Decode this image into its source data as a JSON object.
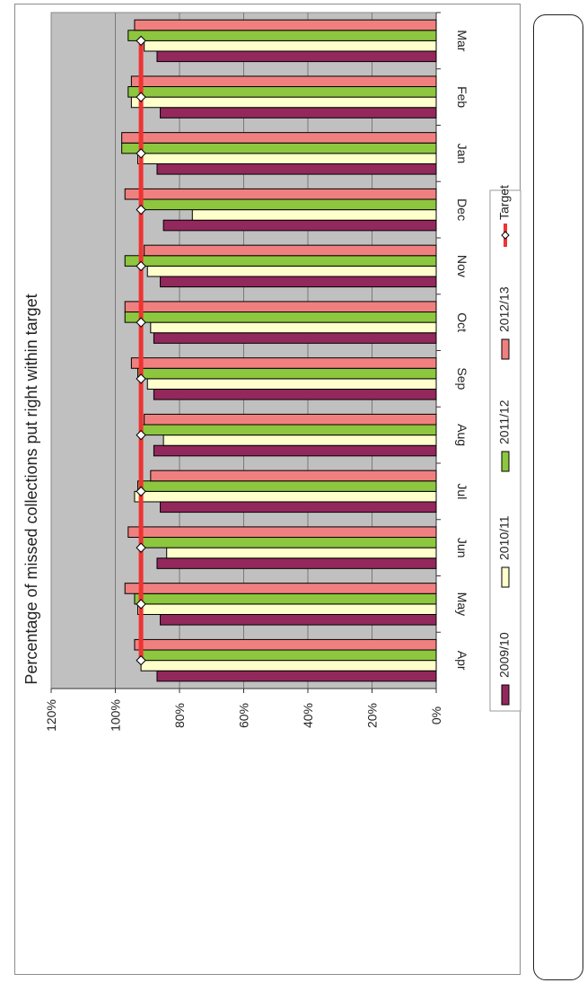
{
  "chart_data": {
    "type": "bar",
    "orientation": "rotated-90-clockwise",
    "title": "Percentage of missed collections put right within target",
    "categories": [
      "Apr",
      "May",
      "Jun",
      "Jul",
      "Aug",
      "Sep",
      "Oct",
      "Nov",
      "Dec",
      "Jan",
      "Feb",
      "Mar"
    ],
    "series": [
      {
        "name": "2009/10",
        "color": "#93285c",
        "values": [
          87,
          86,
          87,
          86,
          88,
          88,
          88,
          86,
          85,
          87,
          86,
          87
        ]
      },
      {
        "name": "2010/11",
        "color": "#ffffcc",
        "values": [
          92,
          93,
          84,
          94,
          85,
          90,
          89,
          90,
          76,
          93,
          95,
          91
        ]
      },
      {
        "name": "2011/12",
        "color": "#8dc63f",
        "values": [
          92,
          94,
          92,
          93,
          92,
          93,
          97,
          97,
          92,
          98,
          96,
          96
        ]
      },
      {
        "name": "2012/13",
        "color": "#f08080",
        "values": [
          94,
          97,
          96,
          89,
          91,
          95,
          97,
          91,
          97,
          98,
          95,
          94
        ]
      }
    ],
    "target": {
      "name": "Target",
      "color": "#ee3333",
      "value": 92
    },
    "ylim": [
      0,
      120
    ],
    "yticks": [
      "0%",
      "20%",
      "40%",
      "60%",
      "80%",
      "100%",
      "120%"
    ],
    "grid": true,
    "plot_background": "#c0c0c0",
    "legend": "right"
  }
}
